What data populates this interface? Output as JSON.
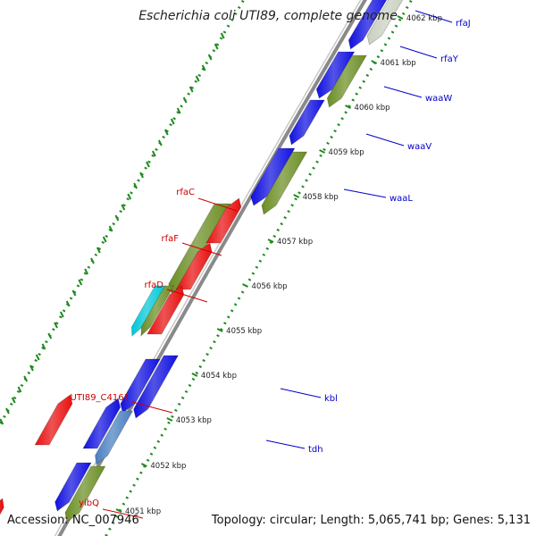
{
  "title": "Escherichia coli UTI89, complete genome",
  "footer": {
    "accession": "Accession: NC_007946",
    "summary": "Topology: circular; Length: 5,065,741 bp; Genes: 5,131"
  },
  "colors": {
    "forward_label": "#0000cc",
    "reverse_label": "#cc0000",
    "backbone": "#8a8a8a",
    "tick_track": "#1f8a1f",
    "gene_blue": "#1010e0",
    "gene_olive": "#6b8e23",
    "gene_red": "#e81010",
    "gene_cyan": "#00c8d8",
    "gene_grey": "#707070",
    "gene_steel": "#4a7fc0"
  },
  "kbp_ticks": [
    "4062 kbp",
    "4061 kbp",
    "4060 kbp",
    "4059 kbp",
    "4058 kbp",
    "4057 kbp",
    "4056 kbp",
    "4055 kbp",
    "4054 kbp",
    "4053 kbp",
    "4052 kbp",
    "4051 kbp"
  ],
  "forward_labels": [
    "rfaJ",
    "rfaY",
    "waaW",
    "waaV",
    "waaL",
    "kbl",
    "tdh"
  ],
  "reverse_labels": [
    "rfaC",
    "rfaF",
    "rfaD",
    "UTI89_C4161",
    "yibQ"
  ]
}
